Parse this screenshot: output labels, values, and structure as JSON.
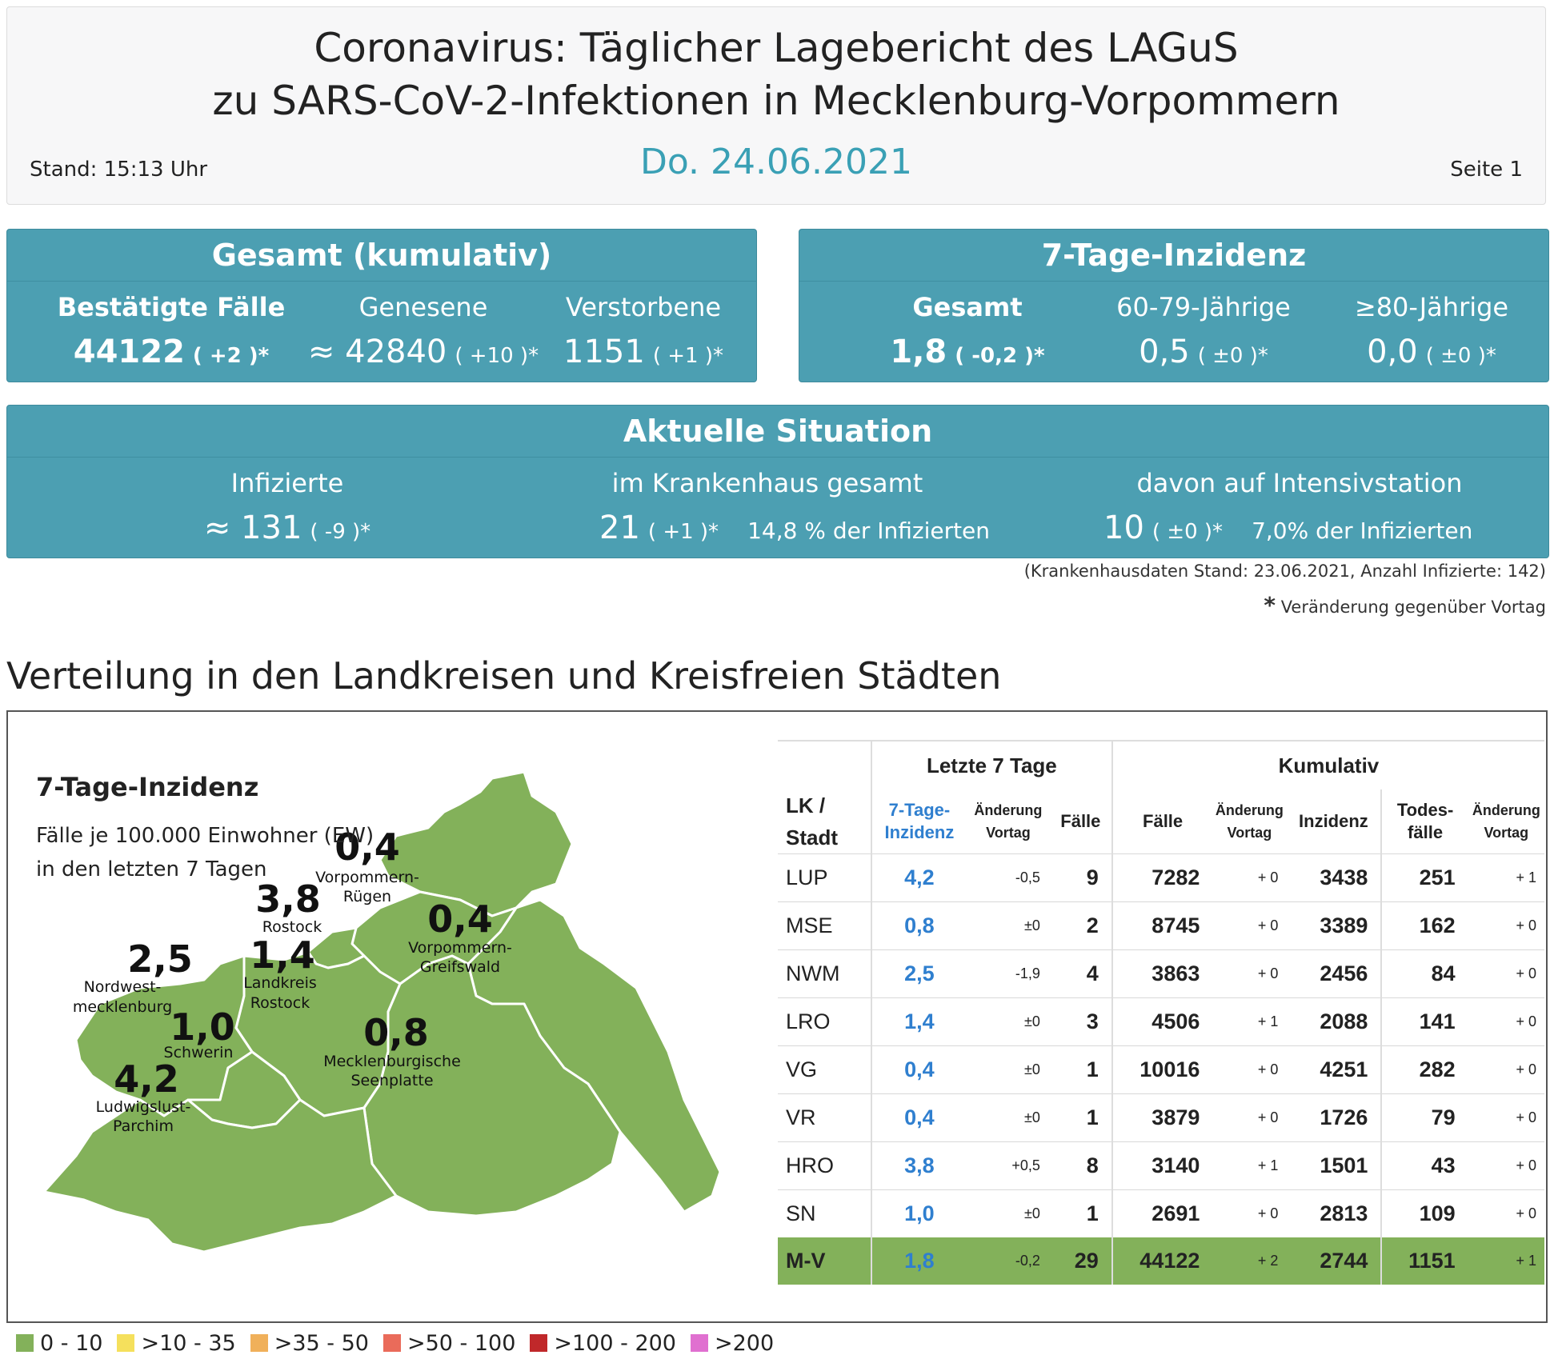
{
  "header": {
    "title_line1": "Coronavirus: Täglicher Lagebericht des LAGuS",
    "title_line2": "zu SARS-CoV-2-Infektionen in Mecklenburg-Vorpommern",
    "date": "Do. 24.06.2021",
    "stand": "Stand: 15:13 Uhr",
    "page": "Seite 1"
  },
  "gesamt": {
    "title": "Gesamt (kumulativ)",
    "confirmed": {
      "label": "Bestätigte Fälle",
      "value": "44122",
      "change": "( +2 )*"
    },
    "recovered": {
      "label": "Genesene",
      "value": "≈ 42840",
      "change": "( +10 )*"
    },
    "deceased": {
      "label": "Verstorbene",
      "value": "1151",
      "change": "( +1 )*"
    }
  },
  "inzidenz": {
    "title": "7-Tage-Inzidenz",
    "total": {
      "label": "Gesamt",
      "value": "1,8",
      "change": "( -0,2 )*"
    },
    "age60": {
      "label": "60-79-Jährige",
      "value": "0,5",
      "change": "( ±0 )*"
    },
    "age80": {
      "label": "≥80-Jährige",
      "value": "0,0",
      "change": "( ±0 )*"
    }
  },
  "aktuell": {
    "title": "Aktuelle Situation",
    "infected": {
      "label": "Infizierte",
      "value": "≈ 131",
      "change": "( -9 )*"
    },
    "hospital": {
      "label": "im Krankenhaus gesamt",
      "value": "21",
      "change": "( +1 )*",
      "share": "14,8 % der Infizierten"
    },
    "icu": {
      "label": "davon auf Intensivstation",
      "value": "10",
      "change": "( ±0 )*",
      "share": "7,0% der Infizierten"
    }
  },
  "notes": {
    "hospital_data": "(Krankenhausdaten Stand: 23.06.2021, Anzahl Infizierte: 142)",
    "change_star": "*",
    "change_note": "Veränderung gegenüber Vortag"
  },
  "section_title": "Verteilung in den Landkreisen und Kreisfreien Städten",
  "map": {
    "title": "7-Tage-Inzidenz",
    "subtitle1": "Fälle je 100.000 Einwohner (EW)",
    "subtitle2": "in den letzten 7 Tagen",
    "fill_color": "#83b15a",
    "regions": [
      {
        "value": "0,4",
        "name1": "Vorpommern-",
        "name2": "Rügen"
      },
      {
        "value": "3,8",
        "name1": "Rostock",
        "name2": ""
      },
      {
        "value": "1,4",
        "name1": "Landkreis",
        "name2": "Rostock"
      },
      {
        "value": "2,5",
        "name1": "Nordwest-",
        "name2": "mecklenburg"
      },
      {
        "value": "0,4",
        "name1": "Vorpommern-",
        "name2": "Greifswald"
      },
      {
        "value": "1,0",
        "name1": "Schwerin",
        "name2": ""
      },
      {
        "value": "0,8",
        "name1": "Mecklenburgische",
        "name2": "Seenplatte"
      },
      {
        "value": "4,2",
        "name1": "Ludwigslust-",
        "name2": "Parchim"
      }
    ]
  },
  "table": {
    "group_last7": "Letzte 7 Tage",
    "group_cumulative": "Kumulativ",
    "headers": {
      "lk1": "LK /",
      "lk2": "Stadt",
      "inz1": "7-Tage-",
      "inz2": "Inzidenz",
      "chg1": "Änderung",
      "chg2": "Vortag",
      "faelle7": "Fälle",
      "faelle": "Fälle",
      "chgc1": "Änderung",
      "chgc2": "Vortag",
      "inzidenz": "Inzidenz",
      "tod1": "Todes-",
      "tod2": "fälle",
      "chgt1": "Änderung",
      "chgt2": "Vortag"
    },
    "rows": [
      [
        "LUP",
        "4,2",
        "-0,5",
        "9",
        "7282",
        "+ 0",
        "3438",
        "251",
        "+ 1"
      ],
      [
        "MSE",
        "0,8",
        "±0",
        "2",
        "8745",
        "+ 0",
        "3389",
        "162",
        "+ 0"
      ],
      [
        "NWM",
        "2,5",
        "-1,9",
        "4",
        "3863",
        "+ 0",
        "2456",
        "84",
        "+ 0"
      ],
      [
        "LRO",
        "1,4",
        "±0",
        "3",
        "4506",
        "+ 1",
        "2088",
        "141",
        "+ 0"
      ],
      [
        "VG",
        "0,4",
        "±0",
        "1",
        "10016",
        "+ 0",
        "4251",
        "282",
        "+ 0"
      ],
      [
        "VR",
        "0,4",
        "±0",
        "1",
        "3879",
        "+ 0",
        "1726",
        "79",
        "+ 0"
      ],
      [
        "HRO",
        "3,8",
        "+0,5",
        "8",
        "3140",
        "+ 1",
        "1501",
        "43",
        "+ 0"
      ],
      [
        "SN",
        "1,0",
        "±0",
        "1",
        "2691",
        "+ 0",
        "2813",
        "109",
        "+ 0"
      ]
    ],
    "total": [
      "M-V",
      "1,8",
      "-0,2",
      "29",
      "44122",
      "+ 2",
      "2744",
      "1151",
      "+ 1"
    ]
  },
  "legend": [
    {
      "label": "0 - 10",
      "color": "#83b15a"
    },
    {
      "label": ">10 - 35",
      "color": "#f5e05c"
    },
    {
      "label": ">35 - 50",
      "color": "#f0b05a"
    },
    {
      "label": ">50 - 100",
      "color": "#ea6b5a"
    },
    {
      "label": ">100 - 200",
      "color": "#c0282a"
    },
    {
      "label": ">200",
      "color": "#e070d0"
    }
  ]
}
